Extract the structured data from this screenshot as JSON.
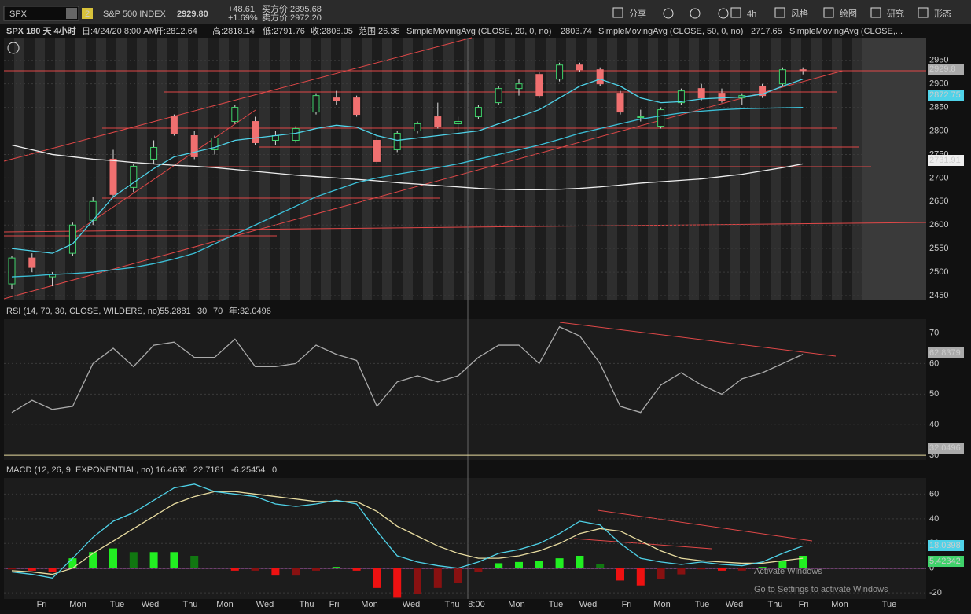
{
  "toolbar": {
    "symbol": "SPX",
    "link": "2",
    "name": "S&P 500 INDEX",
    "last": "2929.80",
    "change": "+48.61",
    "change_pct": "+1.69%",
    "bid": "买方价:2895.68",
    "ask": "卖方价:2972.20",
    "buttons": [
      "分享",
      "4h",
      "风格",
      "绘图",
      "研究",
      "形态"
    ]
  },
  "price": {
    "header": [
      "SPX 180 天 4小时",
      "日:4/24/20 8:00 AM",
      "开:2812.64",
      "高:2818.14",
      "低:2791.76",
      "收:2808.05",
      "范围:26.38",
      "SimpleMovingAvg (CLOSE, 20, 0, no)",
      "2803.74",
      "SimpleMovingAvg (CLOSE, 50, 0, no)",
      "2717.65",
      "SimpleMovingAvg (CLOSE,..."
    ],
    "ylim": [
      2440,
      2998
    ],
    "yticks": [
      2950,
      2900,
      2850,
      2800,
      2750,
      2700,
      2650,
      2600,
      2550,
      2500,
      2450
    ],
    "candles": [
      [
        2475,
        2535,
        2465,
        2530
      ],
      [
        2530,
        2540,
        2500,
        2510
      ],
      [
        2490,
        2500,
        2470,
        2495
      ],
      [
        2540,
        2605,
        2535,
        2600
      ],
      [
        2610,
        2660,
        2600,
        2650
      ],
      [
        2740,
        2760,
        2660,
        2665
      ],
      [
        2680,
        2730,
        2670,
        2725
      ],
      [
        2740,
        2780,
        2730,
        2765
      ],
      [
        2830,
        2835,
        2790,
        2795
      ],
      [
        2790,
        2800,
        2740,
        2745
      ],
      [
        2760,
        2790,
        2750,
        2785
      ],
      [
        2820,
        2855,
        2815,
        2850
      ],
      [
        2820,
        2830,
        2770,
        2775
      ],
      [
        2780,
        2800,
        2770,
        2790
      ],
      [
        2780,
        2810,
        2775,
        2805
      ],
      [
        2840,
        2880,
        2835,
        2875
      ],
      [
        2870,
        2885,
        2855,
        2865
      ],
      [
        2870,
        2875,
        2830,
        2835
      ],
      [
        2780,
        2790,
        2730,
        2735
      ],
      [
        2760,
        2800,
        2755,
        2795
      ],
      [
        2800,
        2820,
        2795,
        2815
      ],
      [
        2830,
        2860,
        2805,
        2810
      ],
      [
        2815,
        2830,
        2800,
        2820
      ],
      [
        2830,
        2855,
        2825,
        2850
      ],
      [
        2860,
        2895,
        2855,
        2890
      ],
      [
        2890,
        2910,
        2875,
        2900
      ],
      [
        2920,
        2925,
        2870,
        2875
      ],
      [
        2910,
        2945,
        2905,
        2940
      ],
      [
        2940,
        2945,
        2925,
        2930
      ],
      [
        2930,
        2935,
        2895,
        2900
      ],
      [
        2880,
        2885,
        2835,
        2840
      ],
      [
        2830,
        2845,
        2820,
        2830
      ],
      [
        2810,
        2850,
        2805,
        2845
      ],
      [
        2860,
        2890,
        2855,
        2885
      ],
      [
        2890,
        2900,
        2865,
        2870
      ],
      [
        2880,
        2890,
        2860,
        2865
      ],
      [
        2870,
        2880,
        2855,
        2875
      ],
      [
        2895,
        2900,
        2870,
        2875
      ],
      [
        2900,
        2935,
        2895,
        2930
      ],
      [
        2930,
        2935,
        2920,
        2928
      ]
    ],
    "sma20": [
      2550,
      2545,
      2540,
      2560,
      2610,
      2660,
      2690,
      2720,
      2745,
      2755,
      2765,
      2780,
      2785,
      2790,
      2795,
      2805,
      2812,
      2808,
      2790,
      2780,
      2785,
      2790,
      2795,
      2800,
      2815,
      2830,
      2845,
      2870,
      2895,
      2910,
      2895,
      2870,
      2860,
      2862,
      2868,
      2870,
      2872,
      2878,
      2895,
      2910
    ],
    "sma_slow": [
      2490,
      2492,
      2495,
      2497,
      2500,
      2505,
      2510,
      2518,
      2528,
      2540,
      2560,
      2580,
      2600,
      2620,
      2640,
      2660,
      2675,
      2690,
      2700,
      2708,
      2715,
      2722,
      2730,
      2740,
      2750,
      2760,
      2770,
      2782,
      2795,
      2805,
      2815,
      2825,
      2832,
      2838,
      2842,
      2845,
      2847,
      2848,
      2849,
      2850
    ],
    "sma50": [
      2770,
      2760,
      2750,
      2745,
      2740,
      2737,
      2733,
      2730,
      2727,
      2725,
      2722,
      2718,
      2714,
      2710,
      2706,
      2703,
      2700,
      2697,
      2694,
      2690,
      2687,
      2684,
      2681,
      2678,
      2676,
      2675,
      2675,
      2676,
      2678,
      2681,
      2685,
      2689,
      2692,
      2695,
      2698,
      2703,
      2708,
      2715,
      2722,
      2730
    ],
    "markers": [
      "2929.8",
      "2872.75",
      "2731.91"
    ]
  },
  "rsi": {
    "header": [
      "RSI (14, 70, 30, CLOSE, WILDERS, no)",
      "55.2881",
      "30",
      "70",
      "年:32.0496"
    ],
    "ylim": [
      28.5,
      74.5
    ],
    "yticks": [
      70,
      60,
      50,
      40,
      30
    ],
    "values": [
      44,
      48,
      45,
      46,
      60,
      65,
      59,
      66,
      67,
      62,
      62,
      68,
      59,
      59,
      60,
      66,
      63,
      61,
      46,
      54,
      56,
      54,
      56,
      62,
      66,
      66,
      60,
      72,
      69,
      60,
      46,
      44,
      53,
      57,
      53,
      50,
      55,
      57,
      60,
      63
    ],
    "markers": [
      "62.8379",
      "32.0496"
    ]
  },
  "macd": {
    "header": [
      "MACD (12, 26, 9, EXPONENTIAL, no)",
      "16.4636",
      "22.7181",
      "-6.25454",
      "0"
    ],
    "ylim": [
      -25,
      73
    ],
    "yticks": [
      60,
      40,
      20,
      0,
      -20
    ],
    "value": [
      -3,
      -5,
      -8,
      8,
      25,
      38,
      45,
      55,
      65,
      68,
      62,
      60,
      58,
      52,
      50,
      52,
      55,
      52,
      30,
      10,
      5,
      2,
      0,
      5,
      12,
      15,
      20,
      28,
      38,
      35,
      20,
      8,
      5,
      3,
      5,
      3,
      2,
      5,
      12,
      18
    ],
    "avg": [
      -2,
      -3,
      -5,
      0,
      12,
      22,
      32,
      42,
      52,
      58,
      62,
      62,
      60,
      58,
      56,
      54,
      54,
      54,
      46,
      34,
      26,
      18,
      12,
      8,
      8,
      10,
      14,
      20,
      28,
      32,
      30,
      22,
      14,
      8,
      6,
      5,
      4,
      4,
      6,
      8
    ],
    "diff": [
      -1,
      -2,
      -3,
      8,
      13,
      16,
      13,
      13,
      13,
      10,
      0,
      -2,
      -2,
      -6,
      -6,
      -2,
      1,
      -2,
      -16,
      -24,
      -21,
      -16,
      -12,
      -3,
      4,
      5,
      6,
      8,
      10,
      3,
      -10,
      -14,
      -9,
      -5,
      -1,
      -2,
      -2,
      1,
      6,
      10
    ],
    "markers": [
      "18.0398",
      "5.42342"
    ]
  },
  "xaxis": [
    "Fri",
    "Mon",
    "Tue",
    "Wed",
    "Thu",
    "Mon",
    "Wed",
    "Thu",
    "Fri",
    "Mon",
    "Wed",
    "Thu",
    "8:00",
    "Mon",
    "Tue",
    "Wed",
    "Fri",
    "Mon",
    "Tue",
    "Wed",
    "Thu",
    "Fri",
    "Mon",
    "Tue"
  ],
  "watermark": [
    "Activate Windows",
    "Go to Settings to activate Windows"
  ]
}
